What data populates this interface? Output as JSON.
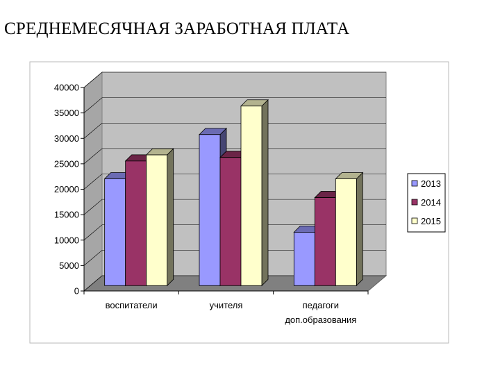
{
  "page": {
    "title": "СРЕДНЕМЕСЯЧНАЯ ЗАРАБОТНАЯ ПЛАТА"
  },
  "chart_data": {
    "type": "bar",
    "categories": [
      "воспитатели",
      "учителя",
      "педагоги доп.образования"
    ],
    "category_lines": [
      [
        "воспитатели"
      ],
      [
        "учителя"
      ],
      [
        "педагоги",
        "доп.образования"
      ]
    ],
    "series": [
      {
        "name": "2013",
        "values": [
          21000,
          29700,
          10500
        ],
        "color": "#9999ff"
      },
      {
        "name": "2014",
        "values": [
          24500,
          25200,
          17300
        ],
        "color": "#993366"
      },
      {
        "name": "2015",
        "values": [
          25700,
          35300,
          21000
        ],
        "color": "#ffffcc"
      }
    ],
    "yticks": [
      0,
      5000,
      10000,
      15000,
      20000,
      25000,
      30000,
      35000,
      40000
    ],
    "ylim": [
      0,
      40000
    ],
    "grid": true,
    "legend": "right",
    "title": "",
    "xlabel": "",
    "ylabel": "",
    "style": {
      "wall": "#c0c0c0",
      "floor": "#808080",
      "frame": "#b8b8b8"
    }
  }
}
